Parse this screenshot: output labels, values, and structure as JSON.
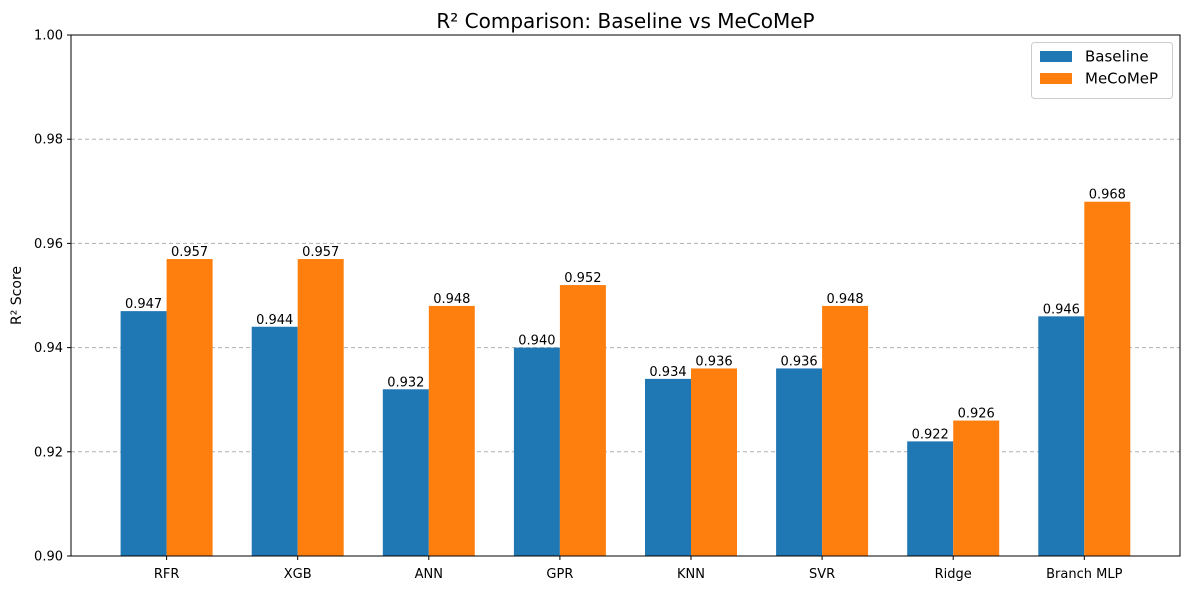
{
  "chart_data": {
    "type": "bar",
    "title": "R² Comparison: Baseline vs MeCoMeP",
    "xlabel": "",
    "ylabel": "R² Score",
    "ylim": [
      0.9,
      1.0
    ],
    "yticks": [
      "0.90",
      "0.92",
      "0.94",
      "0.96",
      "0.98",
      "1.00"
    ],
    "grid": "y-dashed",
    "legend_position": "top-right",
    "categories": [
      "RFR",
      "XGB",
      "ANN",
      "GPR",
      "KNN",
      "SVR",
      "Ridge",
      "Branch MLP"
    ],
    "series": [
      {
        "name": "Baseline",
        "color": "#1f77b4",
        "values": [
          0.947,
          0.944,
          0.932,
          0.94,
          0.934,
          0.936,
          0.922,
          0.946
        ],
        "labels": [
          "0.947",
          "0.944",
          "0.932",
          "0.940",
          "0.934",
          "0.936",
          "0.922",
          "0.946"
        ]
      },
      {
        "name": "MeCoMeP",
        "color": "#ff7f0e",
        "values": [
          0.957,
          0.957,
          0.948,
          0.952,
          0.936,
          0.948,
          0.926,
          0.968
        ],
        "labels": [
          "0.957",
          "0.957",
          "0.948",
          "0.952",
          "0.936",
          "0.948",
          "0.926",
          "0.968"
        ]
      }
    ]
  }
}
